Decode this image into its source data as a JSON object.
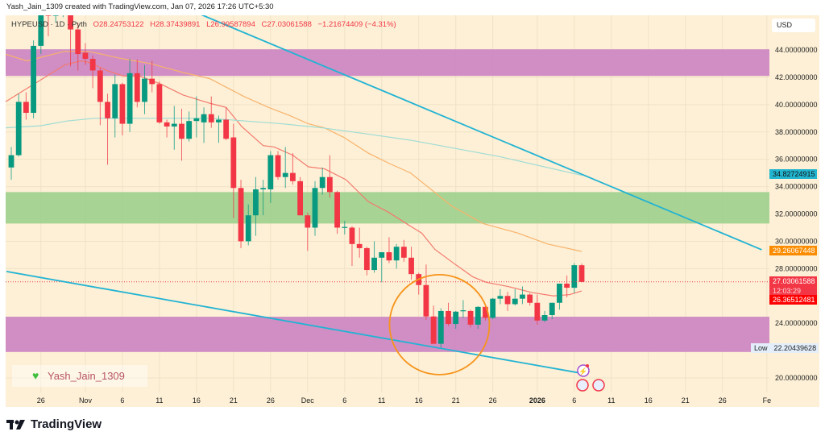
{
  "header": {
    "text": "Yash_Jain_1309 created with TradingView.com, Jan 07, 2026 17:26 UTC+5:30"
  },
  "legend": {
    "symbol": "HYPEUSD · 1D · Pyth",
    "open": "O28.24753122",
    "high": "H28.37439891",
    "low": "L26.99587894",
    "close": "C27.03061588",
    "change": "−1.21674409 (−4.31%)"
  },
  "currency": "USD",
  "watermark": {
    "name": "Yash_Jain_1309",
    "icon": "green-heart-icon"
  },
  "footer": {
    "brand": "TradingView"
  },
  "price_labels": {
    "ma_long": "34.82724915",
    "ma_mid": "29.26067448",
    "last": "27.03061588",
    "countdown": "12:03:29",
    "ma_short": "26.36512481",
    "low_tag": "Low",
    "low_value": "22.20439628"
  },
  "colors": {
    "background": "#fdf0d6",
    "up": "#089981",
    "down": "#f23645",
    "zone_purple": "#cc86c2",
    "zone_green": "#9fd08e",
    "trendline": "#22b3d3",
    "circle": "#f7931a",
    "ma_short": "#f47a6e",
    "ma_mid": "#f9b26b",
    "ma_long": "#9fdcd4"
  },
  "chart_data": {
    "type": "candlestick",
    "symbol": "HYPEUSD",
    "interval": "1D",
    "ylim": [
      19,
      47.5
    ],
    "y_ticks": [
      "44.00000000",
      "42.00000000",
      "40.00000000",
      "38.00000000",
      "36.00000000",
      "34.00000000",
      "32.00000000",
      "30.00000000",
      "28.00000000",
      "24.00000000",
      "20.00000000"
    ],
    "y_tick_values": [
      44,
      42,
      40,
      38,
      36,
      34,
      32,
      30,
      28,
      24,
      20
    ],
    "x_ticks": [
      {
        "label": "26",
        "i": 4
      },
      {
        "label": "Nov",
        "i": 10
      },
      {
        "label": "6",
        "i": 15
      },
      {
        "label": "11",
        "i": 20
      },
      {
        "label": "16",
        "i": 25
      },
      {
        "label": "21",
        "i": 30
      },
      {
        "label": "26",
        "i": 35
      },
      {
        "label": "Dec",
        "i": 40
      },
      {
        "label": "6",
        "i": 45
      },
      {
        "label": "11",
        "i": 50
      },
      {
        "label": "16",
        "i": 55
      },
      {
        "label": "21",
        "i": 60
      },
      {
        "label": "26",
        "i": 65
      },
      {
        "label": "2026",
        "i": 71,
        "bold": true
      },
      {
        "label": "6",
        "i": 76
      },
      {
        "label": "11",
        "i": 81
      },
      {
        "label": "16",
        "i": 86
      },
      {
        "label": "21",
        "i": 91
      },
      {
        "label": "26",
        "i": 96
      },
      {
        "label": "Fe",
        "i": 102
      }
    ],
    "grid": true,
    "candles_ohlc": [
      [
        35.4,
        36.9,
        34.5,
        36.3
      ],
      [
        36.3,
        40.8,
        36.2,
        40.2
      ],
      [
        40.2,
        40.9,
        38.9,
        39.4
      ],
      [
        39.4,
        44.7,
        39.0,
        44.3
      ],
      [
        44.3,
        47.5,
        43.7,
        46.8
      ],
      [
        46.8,
        47.4,
        45.0,
        46.5
      ],
      [
        46.5,
        47.3,
        46.0,
        46.8
      ],
      [
        46.8,
        47.4,
        46.4,
        47.0
      ],
      [
        47.0,
        47.5,
        42.8,
        45.5
      ],
      [
        45.5,
        46.0,
        42.5,
        43.7
      ],
      [
        43.8,
        44.5,
        42.9,
        43.35
      ],
      [
        43.35,
        43.6,
        41.2,
        42.5
      ],
      [
        42.5,
        42.7,
        38.5,
        40.2
      ],
      [
        40.2,
        40.8,
        35.6,
        39.0
      ],
      [
        39.0,
        42.2,
        37.6,
        41.5
      ],
      [
        41.5,
        41.6,
        37.75,
        38.6
      ],
      [
        38.6,
        43.35,
        38.0,
        42.3
      ],
      [
        42.3,
        43.3,
        39.8,
        40.2
      ],
      [
        40.2,
        42.9,
        39.3,
        41.9
      ],
      [
        41.9,
        43.2,
        40.9,
        41.5
      ],
      [
        41.5,
        41.7,
        38.6,
        38.7
      ],
      [
        38.7,
        38.9,
        37.6,
        38.4
      ],
      [
        38.4,
        39.9,
        36.7,
        38.6
      ],
      [
        38.6,
        39.7,
        35.9,
        37.5
      ],
      [
        37.5,
        39.5,
        37.3,
        38.8
      ],
      [
        38.8,
        40.6,
        37.6,
        39.0
      ],
      [
        38.7,
        39.8,
        37.2,
        39.3
      ],
      [
        39.3,
        40.6,
        38.3,
        38.7
      ],
      [
        38.7,
        39.2,
        37.2,
        38.9
      ],
      [
        38.9,
        39.8,
        37.4,
        37.5
      ],
      [
        37.6,
        38.6,
        31.7,
        33.9
      ],
      [
        33.9,
        34.5,
        29.5,
        30.0
      ],
      [
        30.0,
        32.7,
        29.7,
        31.9
      ],
      [
        31.9,
        34.7,
        30.4,
        33.8
      ],
      [
        33.8,
        34.5,
        31.9,
        33.9
      ],
      [
        33.8,
        36.6,
        32.8,
        36.3
      ],
      [
        36.3,
        36.6,
        34.5,
        34.7
      ],
      [
        34.7,
        36.9,
        33.9,
        35.0
      ],
      [
        35.0,
        36.45,
        34.15,
        34.4
      ],
      [
        34.4,
        34.7,
        31.9,
        31.9
      ],
      [
        31.9,
        32.1,
        29.3,
        31.0
      ],
      [
        31.0,
        34.4,
        30.4,
        33.9
      ],
      [
        33.9,
        35.4,
        33.4,
        34.7
      ],
      [
        34.7,
        36.3,
        33.2,
        33.6
      ],
      [
        33.6,
        33.7,
        30.55,
        31.0
      ],
      [
        31.0,
        31.5,
        30.5,
        31.05
      ],
      [
        31.0,
        31.1,
        28.2,
        29.8
      ],
      [
        29.8,
        31.0,
        28.8,
        29.5
      ],
      [
        29.5,
        29.6,
        27.5,
        27.9
      ],
      [
        27.9,
        30.0,
        27.7,
        28.8
      ],
      [
        28.8,
        29.2,
        27.0,
        29.2
      ],
      [
        29.2,
        30.3,
        28.4,
        28.6
      ],
      [
        28.6,
        29.8,
        28.0,
        29.6
      ],
      [
        29.6,
        30.1,
        28.5,
        28.8
      ],
      [
        28.8,
        29.6,
        27.2,
        27.6
      ],
      [
        27.6,
        27.7,
        26.1,
        26.8
      ],
      [
        26.8,
        28.3,
        24.25,
        24.5
      ],
      [
        24.5,
        25.3,
        22.5,
        22.5
      ],
      [
        22.5,
        25.1,
        22.2,
        24.9
      ],
      [
        24.9,
        25.5,
        23.8,
        23.95
      ],
      [
        23.95,
        24.9,
        23.6,
        24.85
      ],
      [
        24.9,
        25.7,
        24.4,
        24.95
      ],
      [
        24.9,
        25.0,
        23.7,
        23.9
      ],
      [
        23.9,
        25.25,
        23.6,
        25.2
      ],
      [
        25.2,
        25.3,
        24.2,
        24.4
      ],
      [
        24.4,
        25.85,
        24.3,
        25.8
      ],
      [
        25.8,
        26.5,
        25.4,
        26.0
      ],
      [
        26.0,
        26.3,
        24.9,
        25.4
      ],
      [
        25.4,
        26.5,
        25.3,
        25.8
      ],
      [
        25.8,
        26.7,
        25.4,
        26.1
      ],
      [
        26.1,
        26.2,
        25.3,
        25.5
      ],
      [
        25.5,
        26.1,
        23.9,
        24.2
      ],
      [
        24.2,
        24.9,
        24.1,
        24.6
      ],
      [
        24.6,
        25.5,
        24.3,
        25.5
      ],
      [
        25.5,
        26.9,
        25.0,
        26.9
      ],
      [
        26.9,
        27.5,
        25.9,
        26.6
      ],
      [
        26.6,
        28.4,
        26.2,
        28.25
      ],
      [
        28.24753122,
        28.37439891,
        26.99587894,
        27.03061588
      ]
    ],
    "moving_averages": [
      {
        "key": "ma_short",
        "points": [
          [
            -0.8,
            40.2
          ],
          [
            7.2,
            42.9
          ],
          [
            9.4,
            43.2
          ],
          [
            10.4,
            43.1
          ],
          [
            12.9,
            42.5
          ],
          [
            15.1,
            42.1
          ],
          [
            17.3,
            42.1
          ],
          [
            20.2,
            41.5
          ],
          [
            23.2,
            40.7
          ],
          [
            26.8,
            40.1
          ],
          [
            29,
            39.8
          ],
          [
            31.1,
            38.4
          ],
          [
            34,
            37.0
          ],
          [
            35.5,
            36.9
          ],
          [
            38,
            36.3
          ],
          [
            40.1,
            35.45
          ],
          [
            42.3,
            35.3
          ],
          [
            45.2,
            34.5
          ],
          [
            48.2,
            32.9
          ],
          [
            51,
            32.1
          ],
          [
            53.9,
            31.1
          ],
          [
            55.4,
            30.6
          ],
          [
            57.2,
            29.4
          ],
          [
            59.7,
            28.4
          ],
          [
            62.3,
            27.4
          ],
          [
            64.1,
            27.0
          ],
          [
            67,
            26.7
          ],
          [
            70.3,
            26.25
          ],
          [
            73.2,
            26.0
          ],
          [
            75.4,
            26.1
          ],
          [
            77,
            26.365
          ]
        ]
      },
      {
        "key": "ma_mid",
        "points": [
          [
            -0.8,
            43.7
          ],
          [
            2.1,
            43.2
          ],
          [
            7.2,
            43.9
          ],
          [
            10.4,
            43.9
          ],
          [
            15.1,
            43.35
          ],
          [
            18.8,
            43.0
          ],
          [
            23.2,
            42.35
          ],
          [
            26.8,
            41.9
          ],
          [
            31.4,
            40.6
          ],
          [
            34.7,
            39.8
          ],
          [
            37.6,
            39.2
          ],
          [
            40.1,
            38.6
          ],
          [
            42.3,
            38.3
          ],
          [
            44.9,
            37.6
          ],
          [
            48.2,
            36.45
          ],
          [
            51,
            35.7
          ],
          [
            53.9,
            35.0
          ],
          [
            59.4,
            32.6
          ],
          [
            63.7,
            31.3
          ],
          [
            68.4,
            30.6
          ],
          [
            72.4,
            29.8
          ],
          [
            77,
            29.26
          ]
        ]
      },
      {
        "key": "ma_long",
        "points": [
          [
            -0.8,
            38.3
          ],
          [
            3.9,
            38.45
          ],
          [
            7.5,
            38.8
          ],
          [
            11.2,
            39.0
          ],
          [
            18.1,
            39.0
          ],
          [
            26.8,
            39.0
          ],
          [
            36.5,
            38.6
          ],
          [
            42,
            38.3
          ],
          [
            47.4,
            37.9
          ],
          [
            53.9,
            37.4
          ],
          [
            65.9,
            36.2
          ],
          [
            77,
            34.83
          ]
        ]
      }
    ],
    "zones": [
      {
        "color": "zone_purple",
        "from": 42.1,
        "to": 44.05
      },
      {
        "color": "zone_green",
        "from": 31.3,
        "to": 33.6
      },
      {
        "color": "zone_purple",
        "from": 21.9,
        "to": 24.48
      }
    ],
    "trendlines": [
      {
        "from": [
          23.5,
          47.07
        ],
        "to": [
          101.3,
          29.38
        ]
      },
      {
        "from": [
          -0.65,
          27.79
        ],
        "to": [
          76.8,
          20.36
        ]
      }
    ],
    "highlight_circle": {
      "center": [
        57.8,
        23.9
      ]
    }
  }
}
